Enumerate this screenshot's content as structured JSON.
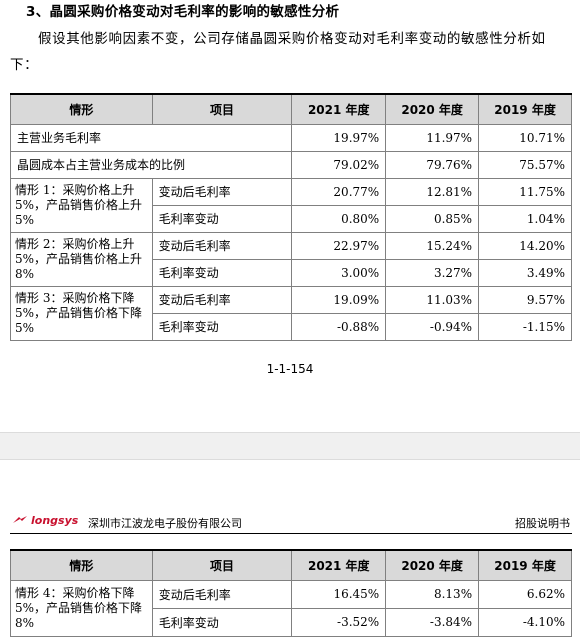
{
  "section_title": "3、晶圆采购价格变动对毛利率的影响的敏感性分析",
  "intro": "假设其他影响因素不变，公司存储晶圆采购价格变动对毛利率变动的敏感性分析如下：",
  "table_headers": [
    "情形",
    "项目",
    "2021 年度",
    "2020 年度",
    "2019 年度"
  ],
  "rows_simple": [
    {
      "label": "主营业务毛利率",
      "v2021": "19.97%",
      "v2020": "11.97%",
      "v2019": "10.71%"
    },
    {
      "label": "晶圆成本占主营业务成本的比例",
      "v2021": "79.02%",
      "v2020": "79.76%",
      "v2019": "75.57%"
    }
  ],
  "scenarios": [
    {
      "label": "情形 1：采购价格上升 5%，产品销售价格上升 5%",
      "rows": [
        {
          "item": "变动后毛利率",
          "v2021": "20.77%",
          "v2020": "12.81%",
          "v2019": "11.75%"
        },
        {
          "item": "毛利率变动",
          "v2021": "0.80%",
          "v2020": "0.85%",
          "v2019": "1.04%"
        }
      ]
    },
    {
      "label": "情形 2：采购价格上升 5%，产品销售价格上升 8%",
      "rows": [
        {
          "item": "变动后毛利率",
          "v2021": "22.97%",
          "v2020": "15.24%",
          "v2019": "14.20%"
        },
        {
          "item": "毛利率变动",
          "v2021": "3.00%",
          "v2020": "3.27%",
          "v2019": "3.49%"
        }
      ]
    },
    {
      "label": "情形 3：采购价格下降 5%，产品销售价格下降 5%",
      "rows": [
        {
          "item": "变动后毛利率",
          "v2021": "19.09%",
          "v2020": "11.03%",
          "v2019": "9.57%"
        },
        {
          "item": "毛利率变动",
          "v2021": "-0.88%",
          "v2020": "-0.94%",
          "v2019": "-1.15%"
        }
      ]
    }
  ],
  "page_number": "1-1-154",
  "header": {
    "logo_text": "longsys",
    "company": "深圳市江波龙电子股份有限公司",
    "doc_name": "招股说明书",
    "logo_color": "#c8102e"
  },
  "scenario4": {
    "label": "情形 4：采购价格下降 5%，产品销售价格下降 8%",
    "rows": [
      {
        "item": "变动后毛利率",
        "v2021": "16.45%",
        "v2020": "8.13%",
        "v2019": "6.62%"
      },
      {
        "item": "毛利率变动",
        "v2021": "-3.52%",
        "v2020": "-3.84%",
        "v2019": "-4.10%"
      }
    ]
  }
}
